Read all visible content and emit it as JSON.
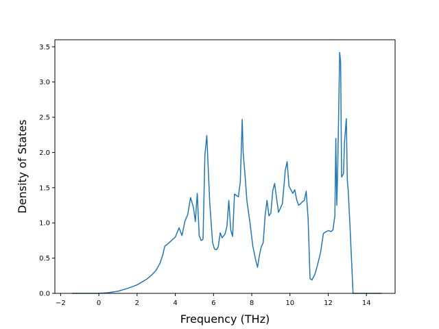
{
  "chart_data": {
    "type": "line",
    "title": "",
    "xlabel": "Frequency (THz)",
    "ylabel": "Density of States",
    "xlim": [
      -2.3,
      15.5
    ],
    "ylim": [
      0.0,
      3.6
    ],
    "x_ticks": [
      -2,
      0,
      2,
      4,
      6,
      8,
      10,
      12,
      14
    ],
    "x_tick_labels": [
      "−2",
      "0",
      "2",
      "4",
      "6",
      "8",
      "10",
      "12",
      "14"
    ],
    "y_ticks": [
      0.0,
      0.5,
      1.0,
      1.5,
      2.0,
      2.5,
      3.0,
      3.5
    ],
    "y_tick_labels": [
      "0.0",
      "0.5",
      "1.0",
      "1.5",
      "2.0",
      "2.5",
      "3.0",
      "3.5"
    ],
    "grid": false,
    "legend": "none",
    "series": [
      {
        "color": "#1f77b4",
        "x": [
          -1.4,
          -1.0,
          -0.5,
          0.0,
          0.5,
          1.0,
          1.5,
          2.0,
          2.5,
          2.8,
          3.0,
          3.2,
          3.35,
          3.45,
          3.6,
          3.8,
          4.0,
          4.2,
          4.35,
          4.5,
          4.65,
          4.8,
          4.95,
          5.05,
          5.15,
          5.25,
          5.35,
          5.45,
          5.55,
          5.65,
          5.8,
          5.95,
          6.05,
          6.15,
          6.25,
          6.35,
          6.45,
          6.6,
          6.7,
          6.8,
          6.9,
          7.0,
          7.1,
          7.2,
          7.3,
          7.4,
          7.5,
          7.55,
          7.65,
          7.75,
          7.9,
          8.05,
          8.2,
          8.3,
          8.4,
          8.5,
          8.6,
          8.7,
          8.8,
          8.9,
          9.0,
          9.1,
          9.2,
          9.3,
          9.4,
          9.5,
          9.6,
          9.7,
          9.75,
          9.85,
          9.95,
          10.05,
          10.15,
          10.25,
          10.35,
          10.45,
          10.55,
          10.65,
          10.75,
          10.85,
          10.95,
          11.05,
          11.15,
          11.3,
          11.45,
          11.6,
          11.75,
          11.85,
          12.0,
          12.15,
          12.25,
          12.35,
          12.4,
          12.45,
          12.5,
          12.6,
          12.65,
          12.7,
          12.8,
          12.85,
          12.95,
          13.0,
          13.05,
          13.15,
          13.3,
          13.45,
          13.6,
          14.0,
          14.4,
          14.8
        ],
        "values": [
          0.0,
          0.0,
          0.0,
          0.0,
          0.01,
          0.03,
          0.07,
          0.12,
          0.2,
          0.27,
          0.33,
          0.43,
          0.55,
          0.67,
          0.7,
          0.75,
          0.8,
          0.93,
          0.82,
          1.02,
          1.12,
          1.36,
          1.22,
          1.02,
          1.42,
          0.82,
          0.75,
          0.77,
          1.96,
          2.24,
          1.3,
          0.72,
          0.63,
          0.62,
          0.66,
          0.86,
          0.79,
          0.84,
          0.95,
          1.32,
          0.9,
          0.81,
          1.41,
          1.39,
          1.37,
          1.58,
          2.47,
          2.0,
          1.67,
          1.31,
          1.02,
          0.68,
          0.48,
          0.37,
          0.54,
          0.66,
          0.72,
          1.1,
          1.32,
          1.1,
          1.14,
          1.46,
          1.56,
          1.35,
          1.15,
          1.21,
          1.27,
          1.57,
          1.74,
          1.87,
          1.52,
          1.47,
          1.42,
          1.47,
          1.33,
          1.25,
          1.27,
          1.3,
          1.32,
          1.45,
          1.06,
          0.21,
          0.19,
          0.27,
          0.41,
          0.58,
          0.85,
          0.87,
          0.89,
          0.88,
          0.9,
          1.1,
          2.2,
          1.25,
          1.8,
          3.42,
          3.28,
          1.65,
          1.7,
          2.15,
          2.48,
          1.62,
          1.45,
          0.9,
          0.0,
          0.0,
          0.0,
          0.0,
          0.0,
          0.0
        ]
      }
    ]
  }
}
